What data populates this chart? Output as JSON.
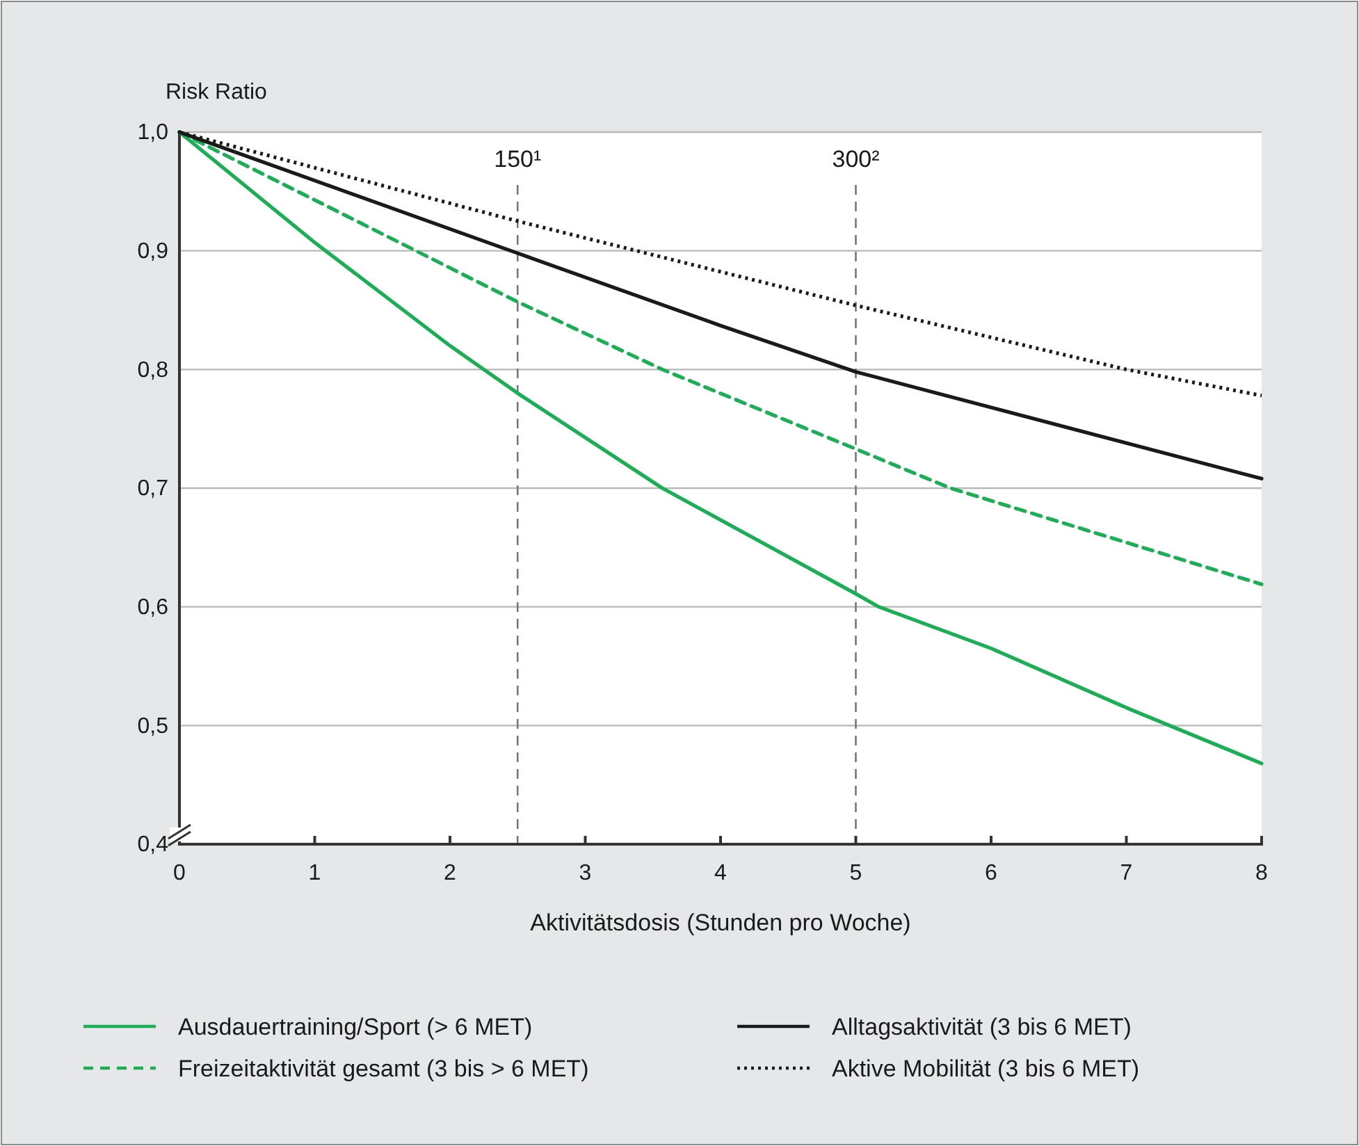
{
  "chart_data": {
    "type": "line",
    "ylabel": "Risk Ratio",
    "xlabel": "Aktivitätsdosis (Stunden pro Woche)",
    "xlim": [
      0,
      8
    ],
    "xticks": [
      0,
      1,
      2,
      3,
      4,
      5,
      6,
      7,
      8
    ],
    "ylim": [
      0.4,
      1.0
    ],
    "yticks": [
      {
        "value": 0.4,
        "label": "0,4"
      },
      {
        "value": 0.5,
        "label": "0,5"
      },
      {
        "value": 0.6,
        "label": "0,6"
      },
      {
        "value": 0.7,
        "label": "0,7"
      },
      {
        "value": 0.8,
        "label": "0,8"
      },
      {
        "value": 0.9,
        "label": "0,9"
      },
      {
        "value": 1.0,
        "label": "1,0"
      }
    ],
    "grid": "y",
    "legend": "bottom",
    "marker": "none",
    "series": [
      {
        "name": "Ausdauertraining/Sport (> 6 MET)",
        "color": "#1aaf54",
        "line_style": "solid",
        "x": [
          0,
          1,
          2,
          2.5,
          3.57,
          5,
          5.17,
          6,
          7,
          8
        ],
        "values": [
          1,
          0.907,
          0.82,
          0.78,
          0.7,
          0.611,
          0.6,
          0.565,
          0.515,
          0.468
        ]
      },
      {
        "name": "Freizeitaktivität gesamt (3 bis > 6 MET)",
        "color": "#1aaf54",
        "line_style": "dashed",
        "x": [
          0,
          2.5,
          3.57,
          5,
          5.7,
          8
        ],
        "values": [
          1,
          0.857,
          0.8,
          0.733,
          0.7,
          0.619
        ]
      },
      {
        "name": "Alltagsaktivität (3 bis 6 MET)",
        "color": "#1a1a1a",
        "line_style": "solid",
        "x": [
          0,
          2.5,
          4,
          5,
          8
        ],
        "values": [
          1,
          0.898,
          0.837,
          0.798,
          0.708
        ]
      },
      {
        "name": "Aktive Mobilität (3 bis 6 MET)",
        "color": "#1a1a1a",
        "line_style": "dotted",
        "x": [
          0,
          2.5,
          5,
          7,
          8
        ],
        "values": [
          1,
          0.925,
          0.854,
          0.8,
          0.778
        ]
      }
    ],
    "ref_lines": [
      {
        "axis": "x",
        "value": 2.5,
        "color": "#777777",
        "line_style": "dashed"
      },
      {
        "axis": "x",
        "value": 5,
        "color": "#777777",
        "line_style": "dashed"
      }
    ],
    "annotations": [
      "150¹",
      "300²"
    ]
  }
}
